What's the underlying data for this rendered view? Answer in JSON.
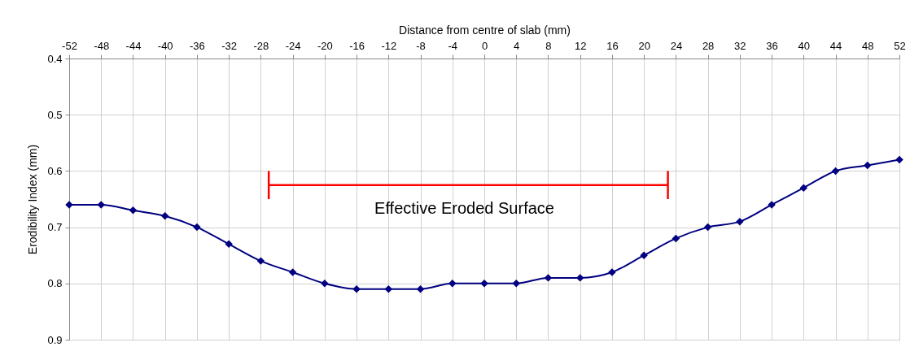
{
  "chart_data": {
    "type": "line",
    "xlabel": "Distance from centre of slab (mm)",
    "ylabel": "Erodibility Index (mm)",
    "x": [
      -52,
      -48,
      -44,
      -40,
      -36,
      -32,
      -28,
      -24,
      -20,
      -16,
      -12,
      -8,
      -4,
      0,
      4,
      8,
      12,
      16,
      20,
      24,
      28,
      32,
      36,
      40,
      44,
      48,
      52
    ],
    "series": [
      {
        "color": "#000080",
        "values": [
          0.66,
          0.66,
          0.67,
          0.68,
          0.7,
          0.73,
          0.76,
          0.78,
          0.8,
          0.81,
          0.81,
          0.81,
          0.8,
          0.8,
          0.8,
          0.79,
          0.79,
          0.78,
          0.75,
          0.72,
          0.7,
          0.69,
          0.66,
          0.63,
          0.6,
          0.59,
          0.58
        ]
      },
      {
        "color": "#ff0000",
        "x": [
          -27,
          23
        ],
        "values": [
          0.625,
          0.625
        ],
        "errors": [
          [
            0.6,
            0.65
          ],
          [
            0.6,
            0.65
          ]
        ],
        "marker": "none"
      }
    ],
    "xlim": [
      -52,
      52
    ],
    "xticks": [
      -52,
      -48,
      -44,
      -40,
      -36,
      -32,
      -28,
      -24,
      -20,
      -16,
      -12,
      -8,
      -4,
      0,
      4,
      8,
      12,
      16,
      20,
      24,
      28,
      32,
      36,
      40,
      44,
      48,
      52
    ],
    "ylim": [
      0.9,
      0.4
    ],
    "yticks": [
      0.4,
      0.5,
      0.6,
      0.7,
      0.8,
      0.9
    ],
    "annotations": [
      "Effective Eroded Surface"
    ],
    "grid": true,
    "marker": "diamond",
    "line_style": "solid"
  }
}
